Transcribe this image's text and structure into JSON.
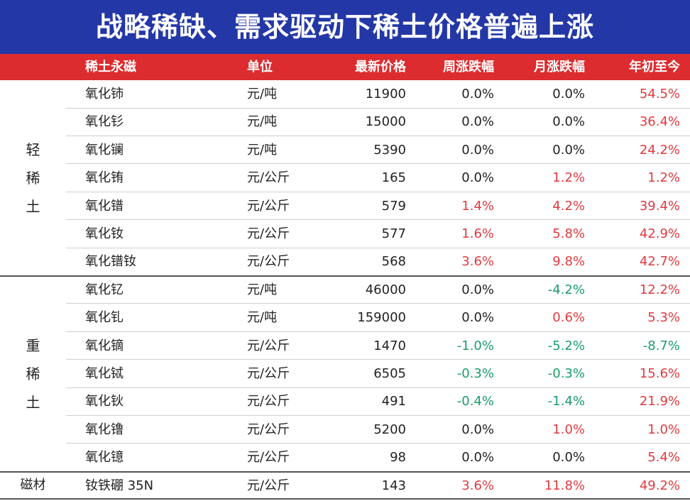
{
  "title": "战略稀缺、需求驱动下稀土价格普遍上涨",
  "headers": [
    "稀土永磁",
    "单位",
    "最新价格",
    "周涨跌幅",
    "月涨跌幅",
    "年初至今"
  ],
  "groups": {
    "light": "轻稀土",
    "heavy": "重稀土",
    "magnet": "磁材"
  },
  "colors": {
    "title_bg": "#2337a6",
    "header_bg": "#dc2c2f",
    "up": "#e03a3f",
    "down": "#1a9e6a"
  },
  "rows": [
    {
      "name": "氧化铈",
      "unit": "元/吨",
      "price": "11900",
      "week": "0.0%",
      "month": "0.0%",
      "ytd": "54.5%"
    },
    {
      "name": "氧化钐",
      "unit": "元/吨",
      "price": "15000",
      "week": "0.0%",
      "month": "0.0%",
      "ytd": "36.4%"
    },
    {
      "name": "氧化镧",
      "unit": "元/吨",
      "price": "5390",
      "week": "0.0%",
      "month": "0.0%",
      "ytd": "24.2%"
    },
    {
      "name": "氧化铕",
      "unit": "元/公斤",
      "price": "165",
      "week": "0.0%",
      "month": "1.2%",
      "ytd": "1.2%"
    },
    {
      "name": "氧化镨",
      "unit": "元/公斤",
      "price": "579",
      "week": "1.4%",
      "month": "4.2%",
      "ytd": "39.4%"
    },
    {
      "name": "氧化钕",
      "unit": "元/公斤",
      "price": "577",
      "week": "1.6%",
      "month": "5.8%",
      "ytd": "42.9%"
    },
    {
      "name": "氧化镨钕",
      "unit": "元/公斤",
      "price": "568",
      "week": "3.6%",
      "month": "9.8%",
      "ytd": "42.7%"
    },
    {
      "name": "氧化钇",
      "unit": "元/吨",
      "price": "46000",
      "week": "0.0%",
      "month": "-4.2%",
      "ytd": "12.2%"
    },
    {
      "name": "氧化钆",
      "unit": "元/吨",
      "price": "159000",
      "week": "0.0%",
      "month": "0.6%",
      "ytd": "5.3%"
    },
    {
      "name": "氧化镝",
      "unit": "元/公斤",
      "price": "1470",
      "week": "-1.0%",
      "month": "-5.2%",
      "ytd": "-8.7%"
    },
    {
      "name": "氧化铽",
      "unit": "元/公斤",
      "price": "6505",
      "week": "-0.3%",
      "month": "-0.3%",
      "ytd": "15.6%"
    },
    {
      "name": "氧化钬",
      "unit": "元/公斤",
      "price": "491",
      "week": "-0.4%",
      "month": "-1.4%",
      "ytd": "21.9%"
    },
    {
      "name": "氧化镥",
      "unit": "元/公斤",
      "price": "5200",
      "week": "0.0%",
      "month": "1.0%",
      "ytd": "1.0%"
    },
    {
      "name": "氧化镱",
      "unit": "元/公斤",
      "price": "98",
      "week": "0.0%",
      "month": "0.0%",
      "ytd": "5.4%"
    },
    {
      "name": "钕铁硼 35N",
      "unit": "元/公斤",
      "price": "143",
      "week": "3.6%",
      "month": "11.8%",
      "ytd": "49.2%"
    }
  ]
}
